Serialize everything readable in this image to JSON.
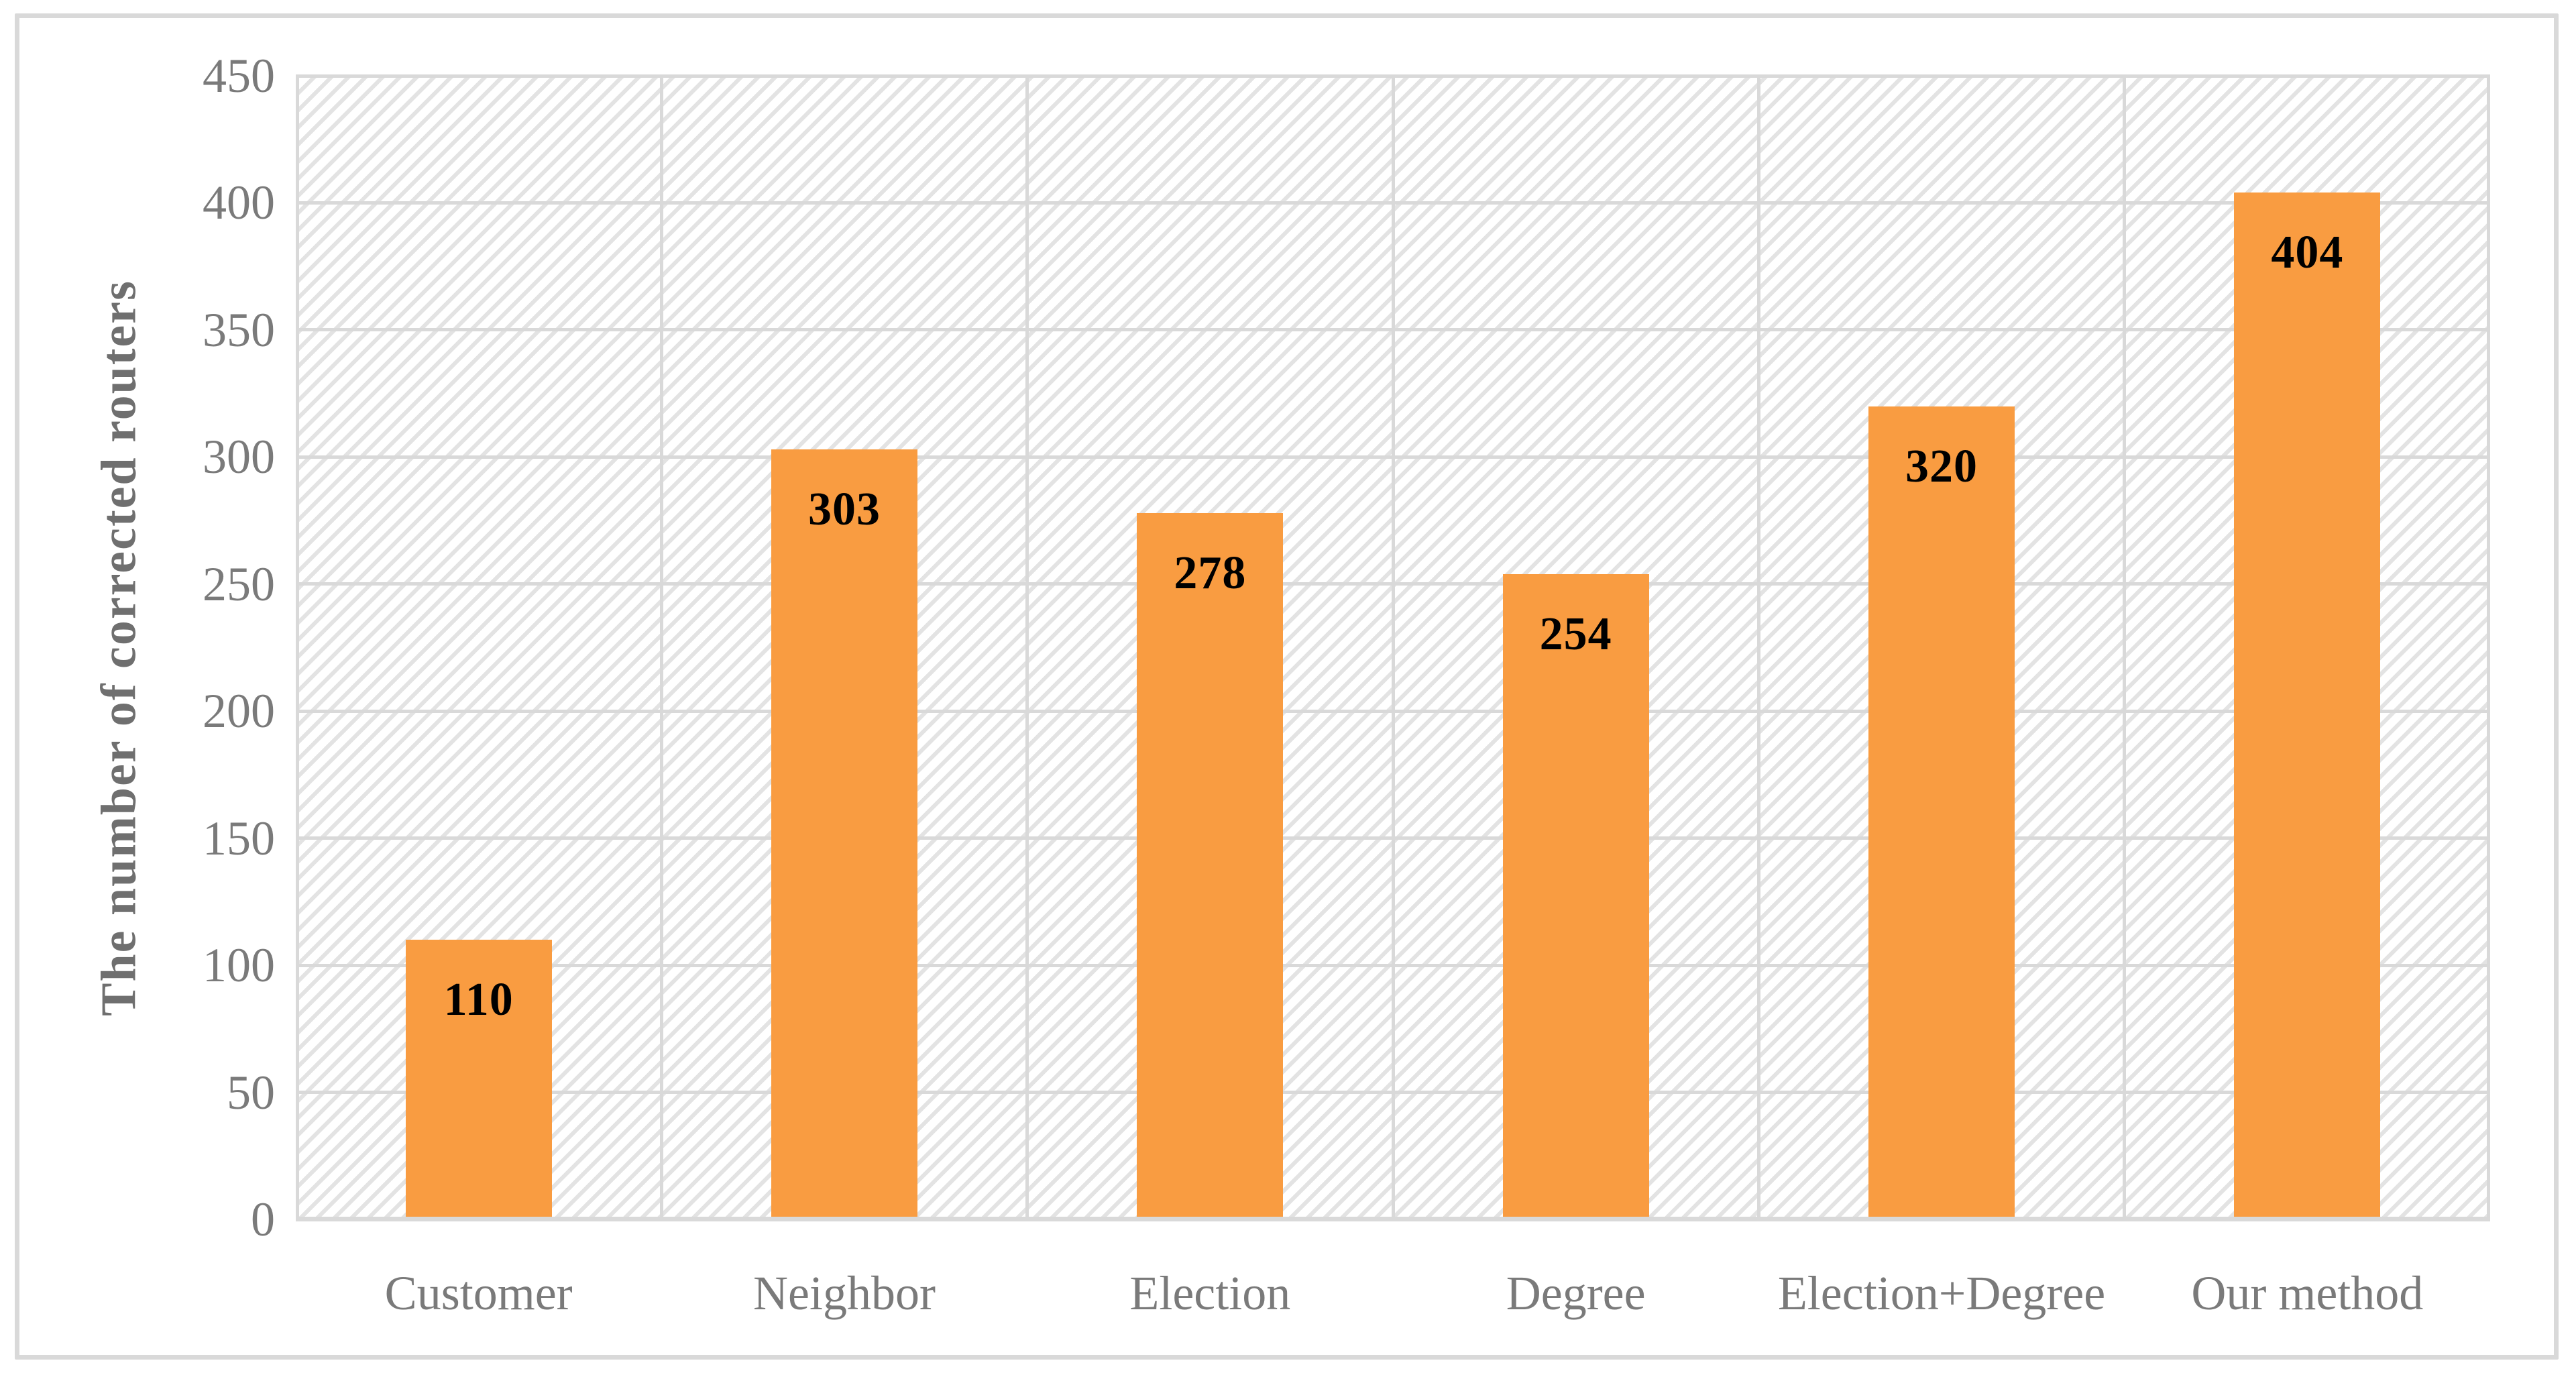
{
  "figure": {
    "background": "#FFFFFF",
    "frame_border_color": "#D9D9D9"
  },
  "colors": {
    "bar_fill": "#F99C41",
    "gridline": "#D9D9D9",
    "hatch_line": "#E3E3E3",
    "axis_text": "#7A7A7A",
    "y_title_text": "#6F6F6F",
    "data_label_text": "#000000"
  },
  "chart_data": {
    "type": "bar",
    "categories": [
      "Customer",
      "Neighbor",
      "Election",
      "Degree",
      "Election+Degree",
      "Our method"
    ],
    "values": [
      110,
      303,
      278,
      254,
      320,
      404
    ],
    "data_labels": [
      "110",
      "303",
      "278",
      "254",
      "320",
      "404"
    ],
    "title": "",
    "xlabel": "",
    "ylabel": "The number of corrected routers",
    "ylim": [
      0,
      450
    ],
    "yticks": [
      0,
      50,
      100,
      150,
      200,
      250,
      300,
      350,
      400,
      450
    ],
    "grid": "horizontal-and-vertical",
    "legend_position": "none",
    "plot_background": "diagonal-hatch",
    "data_label_position": "inside-end",
    "bar_width_fraction": 0.4
  }
}
